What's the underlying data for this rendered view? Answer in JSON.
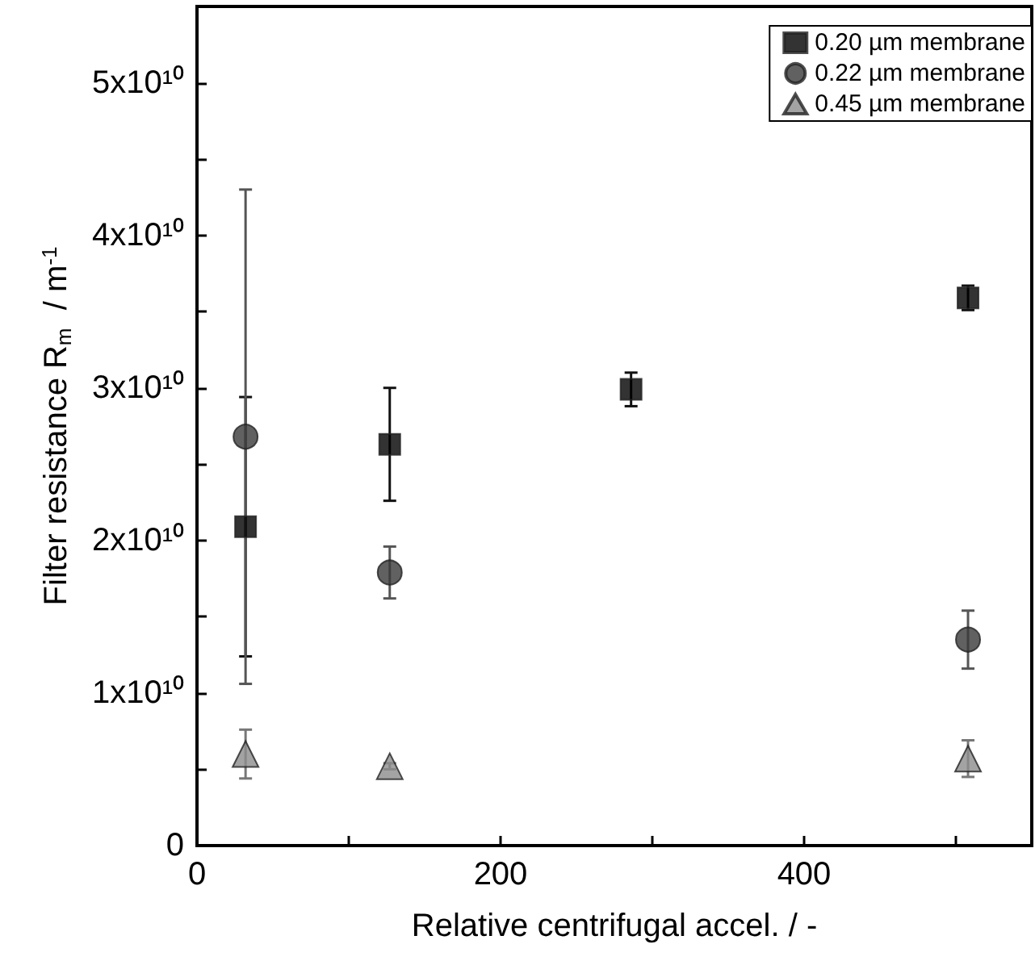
{
  "chart_data": {
    "type": "scatter",
    "xlabel": "Relative centrifugal accel. / -",
    "ylabel": "Filter resistance R$_{m}$  / m$^{-1}$",
    "xlim": [
      0,
      550
    ],
    "xticks": [
      0,
      {
        "value": 100,
        "label": null
      },
      200,
      {
        "value": 300,
        "label": null
      },
      400,
      {
        "value": 500,
        "label": null
      }
    ],
    "ylim": [
      0,
      55000000000
    ],
    "yticks": [
      {
        "value": 0,
        "label": "0"
      },
      {
        "value": 5000000000,
        "label": null
      },
      {
        "value": 10000000000,
        "label": "1x10¹⁰"
      },
      {
        "value": 15000000000,
        "label": null
      },
      {
        "value": 20000000000,
        "label": "2x10¹⁰"
      },
      {
        "value": 25000000000,
        "label": null
      },
      {
        "value": 30000000000,
        "label": "3x10¹⁰"
      },
      {
        "value": 35000000000,
        "label": null
      },
      {
        "value": 40000000000,
        "label": "4x10¹⁰"
      },
      {
        "value": 45000000000,
        "label": null
      },
      {
        "value": 50000000000,
        "label": "5x10¹⁰"
      }
    ],
    "grid": false,
    "legend": "top right",
    "series": [
      {
        "name": "0.20 µm membrane",
        "color": "#000000",
        "marker": "square",
        "x": [
          32,
          127,
          286,
          508
        ],
        "values": [
          20900000000,
          26300000000,
          29900000000,
          35900000000
        ],
        "errors": [
          8500000000,
          3700000000,
          1100000000,
          800000000
        ]
      },
      {
        "name": "0.22 µm membrane",
        "color": "#3a3a3a",
        "marker": "circle",
        "x": [
          32,
          127,
          508
        ],
        "values": [
          26800000000,
          17900000000,
          13500000000
        ],
        "errors": [
          16200000000,
          1700000000,
          1900000000
        ]
      },
      {
        "name": "0.45 µm membrane",
        "color": "#8c8c8c",
        "marker": "triangle",
        "x": [
          32,
          127,
          508
        ],
        "values": [
          6000000000,
          5200000000,
          5700000000
        ],
        "errors": [
          1600000000,
          200000000,
          1200000000
        ]
      }
    ]
  }
}
